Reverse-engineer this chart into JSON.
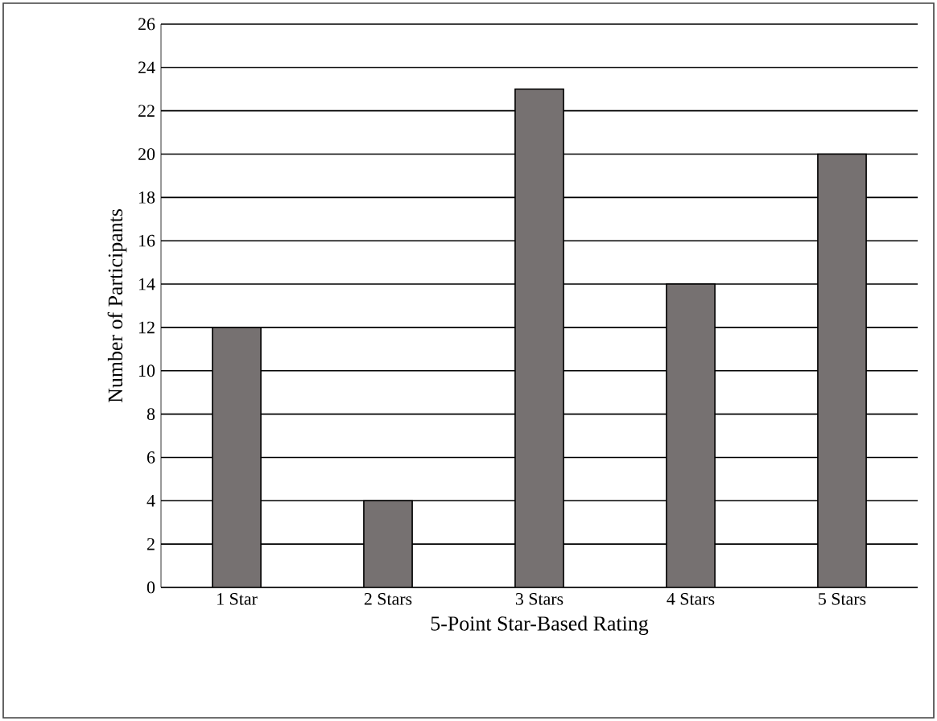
{
  "chart_data": {
    "type": "bar",
    "xlabel": "5-Point Star-Based Rating",
    "ylabel": "Number of Participants",
    "categories": [
      "1 Star",
      "2 Stars",
      "3 Stars",
      "4 Stars",
      "5 Stars"
    ],
    "values": [
      12,
      4,
      23,
      14,
      20
    ],
    "color": "#767171",
    "ylim": [
      0,
      26
    ],
    "yticks": [
      0,
      2,
      4,
      6,
      8,
      10,
      12,
      14,
      16,
      18,
      20,
      22,
      24,
      26
    ],
    "grid": "y"
  }
}
